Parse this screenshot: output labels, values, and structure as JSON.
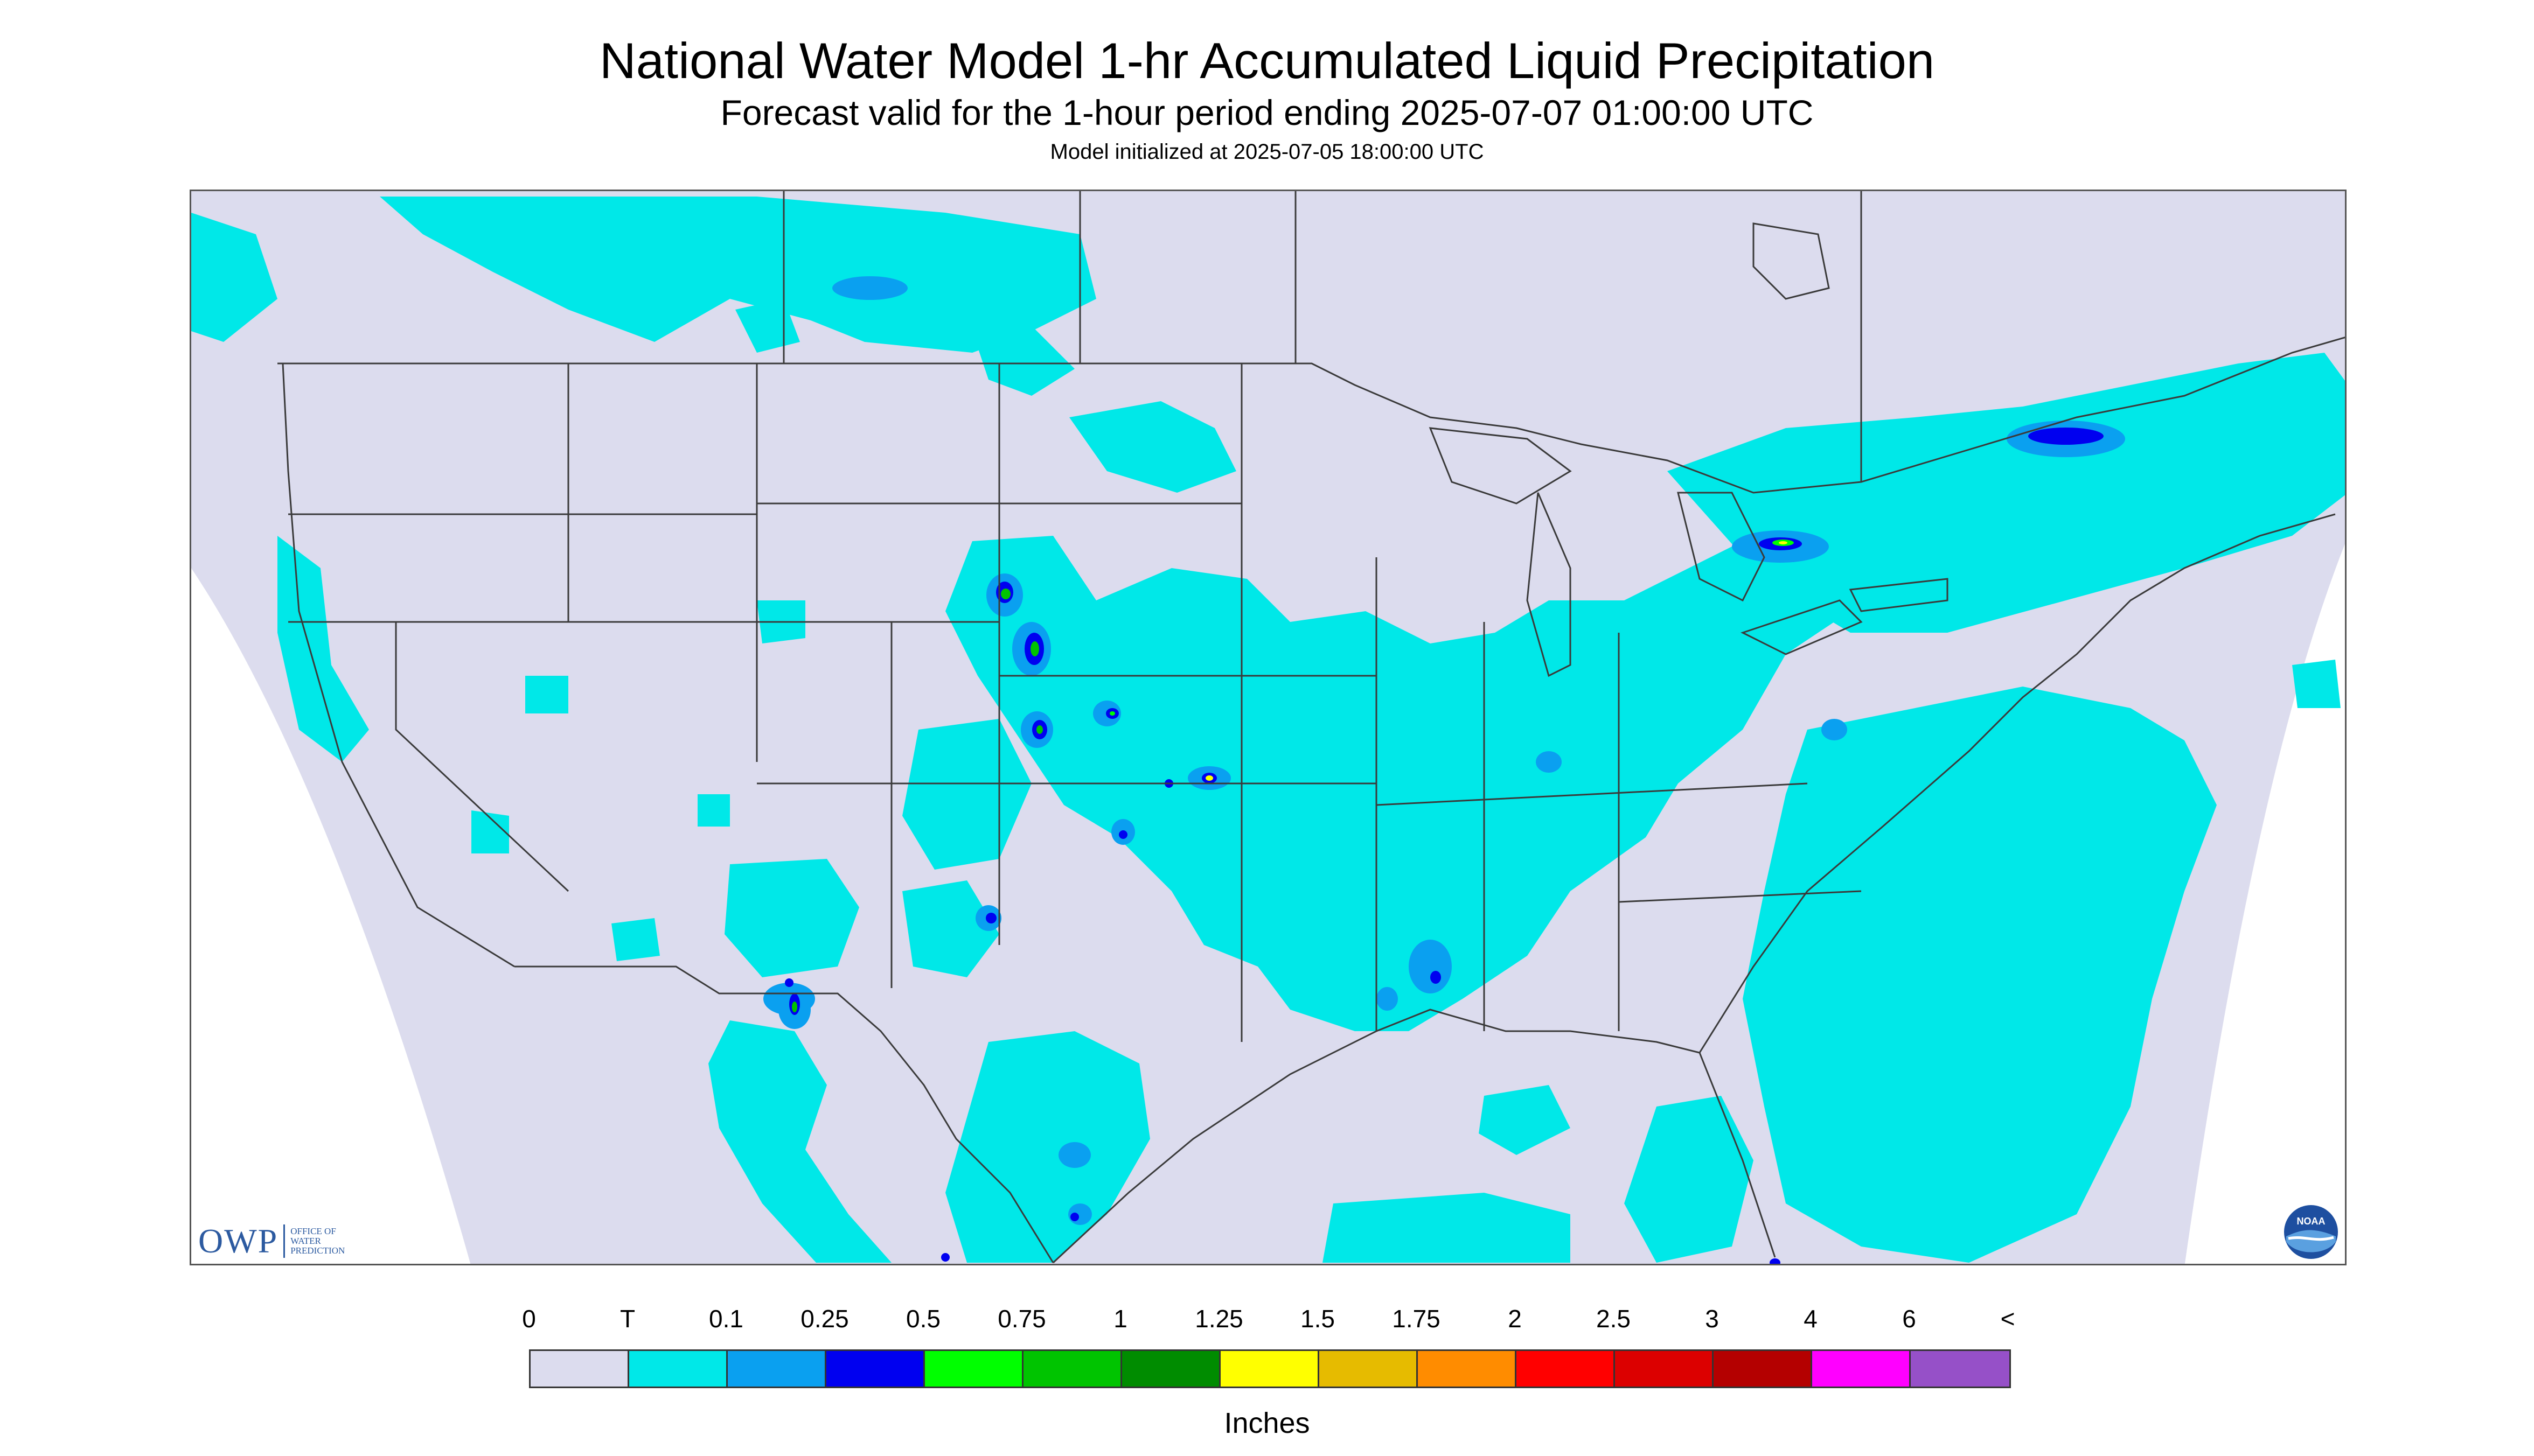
{
  "header": {
    "title": "National Water Model 1-hr Accumulated Liquid Precipitation",
    "subtitle": "Forecast valid for the 1-hour period ending 2025-07-07 01:00:00 UTC",
    "init": "Model initialized at 2025-07-05 18:00:00 UTC"
  },
  "map": {
    "background_color": "#dcdcee",
    "outside_domain_color": "#ffffff",
    "boundary_color": "#3a3a3a",
    "region": "Contiguous United States with southern Canada and northern Mexico"
  },
  "branding": {
    "owp_mark": "OWP",
    "owp_text_lines": [
      "OFFICE OF",
      "WATER",
      "PREDICTION"
    ],
    "noaa_logo": "noaa-logo-icon",
    "noaa_text": "NOAA"
  },
  "legend": {
    "labels": [
      "0",
      "T",
      "0.1",
      "0.25",
      "0.5",
      "0.75",
      "1",
      "1.25",
      "1.5",
      "1.75",
      "2",
      "2.5",
      "3",
      "4",
      "6",
      "<"
    ],
    "colors": [
      "#dcdcee",
      "#00e8e8",
      "#0aa0f0",
      "#0000f0",
      "#00ff00",
      "#00c400",
      "#008c00",
      "#ffff00",
      "#e6bb00",
      "#ff8c00",
      "#ff0000",
      "#dc0000",
      "#b40000",
      "#ff00ff",
      "#9650c8"
    ],
    "units": "Inches"
  }
}
